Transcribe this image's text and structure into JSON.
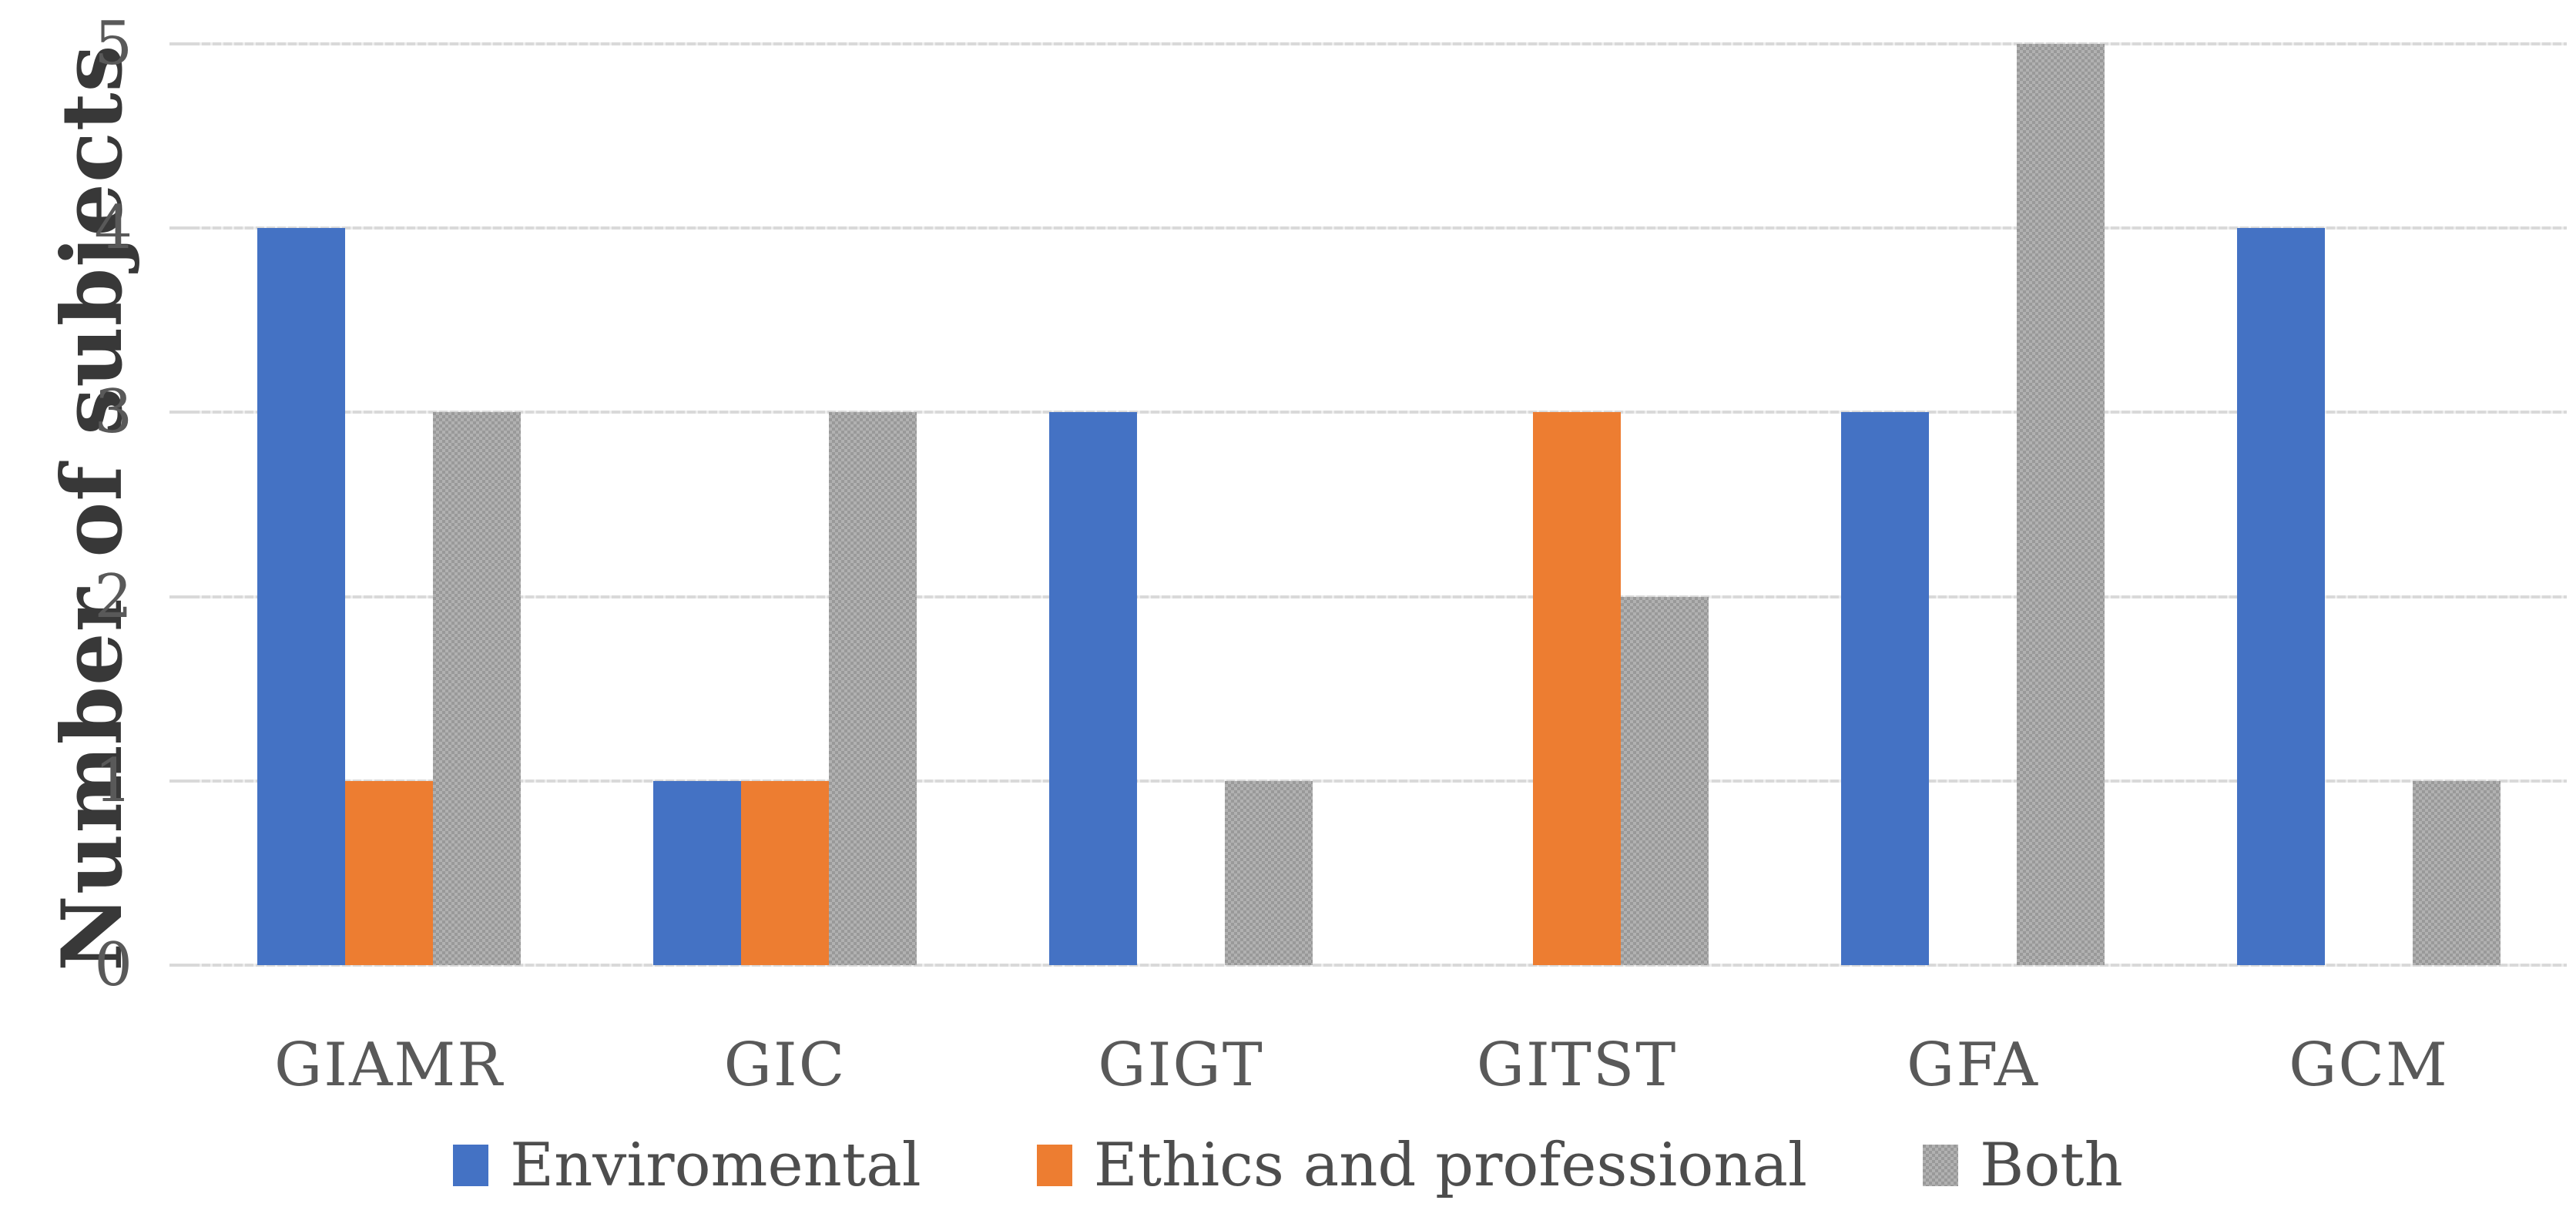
{
  "chart_data": {
    "type": "bar",
    "title": "",
    "xlabel": "",
    "ylabel": "Number of subjects",
    "categories": [
      "GIAMR",
      "GIC",
      "GIGT",
      "GITST",
      "GFA",
      "GCM"
    ],
    "series": [
      {
        "name": "Enviromental",
        "color": "#4472C4",
        "pattern": "solid",
        "values": [
          4,
          1,
          3,
          0,
          3,
          4
        ]
      },
      {
        "name": "Ethics and professional",
        "color": "#ED7D31",
        "pattern": "solid",
        "values": [
          1,
          1,
          0,
          3,
          0,
          0
        ]
      },
      {
        "name": "Both",
        "color": "#A5A5A5",
        "pattern": "checker",
        "values": [
          3,
          3,
          1,
          2,
          5,
          1
        ]
      }
    ],
    "ylim": [
      0,
      5
    ],
    "yticks": [
      "0",
      "1",
      "2",
      "3",
      "4",
      "5"
    ],
    "grid": true,
    "legend_position": "bottom",
    "colors": {
      "gridline": "#D9D9D9",
      "tick_text": "#595959",
      "axis_title_text": "#383838",
      "legend_text": "#4D4D4D"
    }
  }
}
